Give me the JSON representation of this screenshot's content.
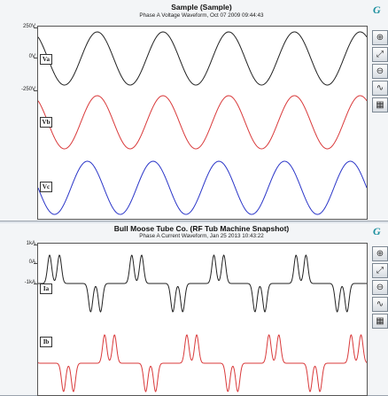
{
  "colors": {
    "black_series": "#222222",
    "red_series": "#d9393a",
    "blue_series": "#2a35c8"
  },
  "panels": [
    {
      "title": "Sample (Sample)",
      "subtitle": "Phase A Voltage Waveform, Oct 07 2009 09:44:43",
      "y_ticks": [
        "250V",
        "0V",
        "-250V"
      ],
      "series_tags": [
        "Va",
        "Vb",
        "Vc"
      ],
      "brand_mark": "G",
      "tools": [
        "zoom-in-icon",
        "zoom-fit-icon",
        "zoom-out-icon",
        "waveform-icon",
        "pattern-icon"
      ]
    },
    {
      "title": "Bull Moose Tube Co. (RF Tub Machine Snapshot)",
      "subtitle": "Phase A Current Waveform, Jan 25 2013 10:43:22",
      "y_ticks": [
        "1kA",
        "0A",
        "-1kA"
      ],
      "series_tags": [
        "Ia",
        "Ib"
      ],
      "brand_mark": "G",
      "tools": [
        "zoom-in-icon",
        "zoom-fit-icon",
        "zoom-out-icon",
        "waveform-icon",
        "pattern-icon"
      ]
    }
  ],
  "chart_data": [
    {
      "type": "line",
      "title": "Sample (Sample)",
      "subtitle": "Phase A Voltage Waveform, Oct 07 2009 09:44:43",
      "y_ticks": [
        "250V",
        "0V",
        "-250V"
      ],
      "cycles_visible": 5,
      "series": [
        {
          "name": "Va",
          "waveform": "sine",
          "amplitude_V": 250,
          "phase_deg": 0,
          "color": "#222222"
        },
        {
          "name": "Vb",
          "waveform": "sine",
          "amplitude_V": 250,
          "phase_deg": -120,
          "color": "#d9393a"
        },
        {
          "name": "Vc",
          "waveform": "sine",
          "amplitude_V": 250,
          "phase_deg": 120,
          "color": "#2a35c8"
        }
      ],
      "grid": false
    },
    {
      "type": "line",
      "title": "Bull Moose Tube Co. (RF Tub Machine Snapshot)",
      "subtitle": "Phase A Current Waveform, Jan 25 2013 10:43:22",
      "y_ticks": [
        "1kA",
        "0A",
        "-1kA"
      ],
      "cycles_visible": 4,
      "series": [
        {
          "name": "Ia",
          "waveform": "double-pulse rectifier current",
          "peak_kA": 1.0,
          "color": "#222222"
        },
        {
          "name": "Ib",
          "waveform": "double-pulse rectifier current",
          "peak_kA": 1.0,
          "color": "#d9393a"
        }
      ],
      "grid": false
    }
  ]
}
